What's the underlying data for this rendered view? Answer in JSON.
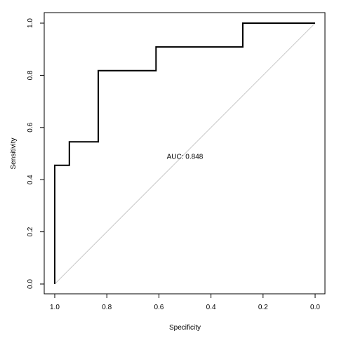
{
  "chart_data": {
    "type": "line",
    "title": "",
    "xlabel": "Specificity",
    "ylabel": "Sensitivity",
    "xlim": [
      1.0,
      0.0
    ],
    "ylim": [
      0.0,
      1.0
    ],
    "x_reversed": true,
    "grid": false,
    "x_ticks": [
      {
        "value": 1.0,
        "label": "1.0"
      },
      {
        "value": 0.8,
        "label": "0.8"
      },
      {
        "value": 0.6,
        "label": "0.6"
      },
      {
        "value": 0.4,
        "label": "0.4"
      },
      {
        "value": 0.2,
        "label": "0.2"
      },
      {
        "value": 0.0,
        "label": "0.0"
      }
    ],
    "y_ticks": [
      {
        "value": 0.0,
        "label": "0.0"
      },
      {
        "value": 0.2,
        "label": "0.2"
      },
      {
        "value": 0.4,
        "label": "0.4"
      },
      {
        "value": 0.6,
        "label": "0.6"
      },
      {
        "value": 0.8,
        "label": "0.8"
      },
      {
        "value": 1.0,
        "label": "1.0"
      }
    ],
    "series": [
      {
        "specificity": [
          1.0,
          1.0,
          0.944,
          0.944,
          0.833,
          0.833,
          0.611,
          0.611,
          0.278,
          0.278,
          0.0
        ],
        "sensitivity": [
          0.0,
          0.455,
          0.455,
          0.545,
          0.545,
          0.818,
          0.818,
          0.909,
          0.909,
          1.0,
          1.0
        ],
        "color": "#000000"
      }
    ],
    "reference_line": {
      "from": [
        1.0,
        0.0
      ],
      "to": [
        0.0,
        1.0
      ],
      "color": "#c8c8c8"
    },
    "annotations": [
      {
        "text": "AUC: 0.848",
        "x": 0.5,
        "y": 0.48
      }
    ]
  }
}
